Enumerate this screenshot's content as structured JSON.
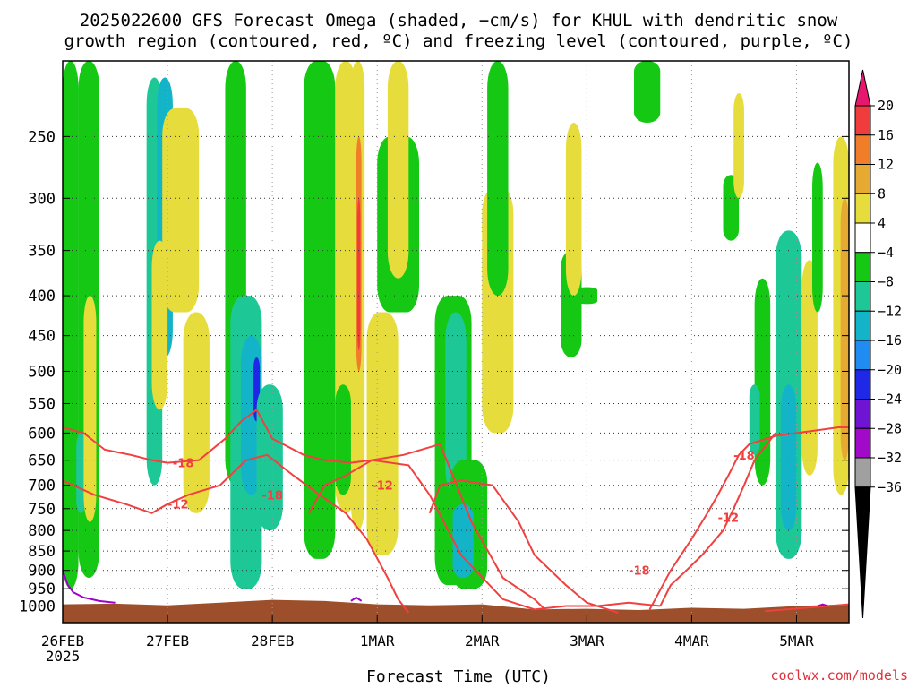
{
  "title": {
    "line1": "2025022600 GFS Forecast Omega (shaded, −cm/s) for KHUL with dendritic snow",
    "line2": "growth region (contoured, red, ºC) and freezing level (contoured, purple, ºC)"
  },
  "credit": "coolwx.com/models",
  "chart_data": {
    "type": "heatmap",
    "xlabel": "Forecast Time (UTC)",
    "x_ticks": [
      "26FEB",
      "27FEB",
      "28FEB",
      "1MAR",
      "2MAR",
      "3MAR",
      "4MAR",
      "5MAR"
    ],
    "x_year": "2025",
    "y_ticks": [
      250,
      300,
      350,
      400,
      450,
      500,
      550,
      600,
      650,
      700,
      750,
      800,
      850,
      900,
      950,
      1000
    ],
    "ylim_hpa": [
      1050,
      200
    ],
    "xlim_days": [
      0,
      7.5
    ],
    "grid": true,
    "colorbar": {
      "labels": [
        "20",
        "16",
        "12",
        "8",
        "4",
        "−4",
        "−8",
        "−12",
        "−16",
        "−20",
        "−24",
        "−28",
        "−32",
        "−36"
      ],
      "colors": [
        "#e8176e",
        "#f03c3c",
        "#f07d28",
        "#e6aa32",
        "#e6dc3c",
        "#ffffff",
        "#14c814",
        "#1ec896",
        "#14b4c8",
        "#1e8cf0",
        "#1e28e6",
        "#6e14d2",
        "#a00ac8",
        "#a0a0a0",
        "#000000"
      ]
    },
    "shading": [
      {
        "t0": 0.0,
        "t1": 0.15,
        "p0": 200,
        "p1": 950,
        "omega": -6
      },
      {
        "t0": 0.15,
        "t1": 0.35,
        "p0": 200,
        "p1": 920,
        "omega": -7
      },
      {
        "t0": 0.13,
        "t1": 0.22,
        "p0": 600,
        "p1": 760,
        "omega": -10
      },
      {
        "t0": 0.2,
        "t1": 0.32,
        "p0": 400,
        "p1": 780,
        "omega": 5
      },
      {
        "t0": 0.8,
        "t1": 0.95,
        "p0": 210,
        "p1": 700,
        "omega": -8
      },
      {
        "t0": 0.9,
        "t1": 1.05,
        "p0": 210,
        "p1": 480,
        "omega": -12
      },
      {
        "t0": 0.95,
        "t1": 1.3,
        "p0": 230,
        "p1": 420,
        "omega": 7
      },
      {
        "t0": 0.85,
        "t1": 1.0,
        "p0": 340,
        "p1": 560,
        "omega": 6
      },
      {
        "t0": 1.15,
        "t1": 1.4,
        "p0": 420,
        "p1": 760,
        "omega": 5
      },
      {
        "t0": 1.55,
        "t1": 1.75,
        "p0": 200,
        "p1": 700,
        "omega": -6
      },
      {
        "t0": 1.6,
        "t1": 1.9,
        "p0": 400,
        "p1": 950,
        "omega": -8
      },
      {
        "t0": 1.7,
        "t1": 1.9,
        "p0": 450,
        "p1": 720,
        "omega": -13
      },
      {
        "t0": 1.82,
        "t1": 1.88,
        "p0": 480,
        "p1": 580,
        "omega": -22
      },
      {
        "t0": 1.85,
        "t1": 2.1,
        "p0": 520,
        "p1": 800,
        "omega": -8
      },
      {
        "t0": 2.3,
        "t1": 2.6,
        "p0": 200,
        "p1": 870,
        "omega": -6
      },
      {
        "t0": 2.6,
        "t1": 2.8,
        "p0": 200,
        "p1": 760,
        "omega": 6
      },
      {
        "t0": 2.75,
        "t1": 2.88,
        "p0": 200,
        "p1": 800,
        "omega": 6
      },
      {
        "t0": 2.8,
        "t1": 2.85,
        "p0": 250,
        "p1": 500,
        "omega": 12
      },
      {
        "t0": 2.81,
        "t1": 2.84,
        "p0": 300,
        "p1": 470,
        "omega": 17
      },
      {
        "t0": 2.6,
        "t1": 2.75,
        "p0": 520,
        "p1": 720,
        "omega": -7
      },
      {
        "t0": 2.9,
        "t1": 3.2,
        "p0": 420,
        "p1": 860,
        "omega": 5
      },
      {
        "t0": 3.0,
        "t1": 3.4,
        "p0": 250,
        "p1": 420,
        "omega": -6
      },
      {
        "t0": 3.55,
        "t1": 3.9,
        "p0": 400,
        "p1": 940,
        "omega": -6
      },
      {
        "t0": 3.65,
        "t1": 3.85,
        "p0": 420,
        "p1": 720,
        "omega": -10
      },
      {
        "t0": 3.7,
        "t1": 4.05,
        "p0": 650,
        "p1": 950,
        "omega": -7
      },
      {
        "t0": 3.72,
        "t1": 3.92,
        "p0": 740,
        "p1": 920,
        "omega": -12
      },
      {
        "t0": 4.0,
        "t1": 4.3,
        "p0": 290,
        "p1": 600,
        "omega": 5
      },
      {
        "t0": 4.05,
        "t1": 4.25,
        "p0": 200,
        "p1": 400,
        "omega": -5
      },
      {
        "t0": 3.1,
        "t1": 3.3,
        "p0": 200,
        "p1": 380,
        "omega": 5
      },
      {
        "t0": 4.75,
        "t1": 4.95,
        "p0": 350,
        "p1": 480,
        "omega": -6
      },
      {
        "t0": 4.9,
        "t1": 5.1,
        "p0": 390,
        "p1": 410,
        "omega": -6
      },
      {
        "t0": 4.8,
        "t1": 4.95,
        "p0": 240,
        "p1": 400,
        "omega": 5
      },
      {
        "t0": 5.45,
        "t1": 5.7,
        "p0": 200,
        "p1": 240,
        "omega": -6
      },
      {
        "t0": 6.3,
        "t1": 6.45,
        "p0": 280,
        "p1": 340,
        "omega": -5
      },
      {
        "t0": 6.4,
        "t1": 6.5,
        "p0": 220,
        "p1": 300,
        "omega": 5
      },
      {
        "t0": 6.6,
        "t1": 6.75,
        "p0": 380,
        "p1": 700,
        "omega": -6
      },
      {
        "t0": 6.55,
        "t1": 6.65,
        "p0": 520,
        "p1": 640,
        "omega": -10
      },
      {
        "t0": 6.8,
        "t1": 7.05,
        "p0": 330,
        "p1": 870,
        "omega": -8
      },
      {
        "t0": 6.85,
        "t1": 7.0,
        "p0": 520,
        "p1": 800,
        "omega": -12
      },
      {
        "t0": 7.05,
        "t1": 7.2,
        "p0": 360,
        "p1": 680,
        "omega": 5
      },
      {
        "t0": 7.15,
        "t1": 7.25,
        "p0": 270,
        "p1": 420,
        "omega": -6
      },
      {
        "t0": 7.35,
        "t1": 7.5,
        "p0": 250,
        "p1": 720,
        "omega": 6
      },
      {
        "t0": 7.42,
        "t1": 7.5,
        "p0": 300,
        "p1": 650,
        "omega": 10
      }
    ],
    "contours_dgz": [
      {
        "label": "-18",
        "label_t": 1.15,
        "label_p": 655,
        "t": [
          0.0,
          0.2,
          0.4,
          0.65,
          0.85,
          1.0,
          1.3,
          1.55,
          1.7,
          1.85,
          2.0,
          2.3,
          2.5,
          2.75,
          2.95,
          3.25,
          3.6,
          3.9,
          4.2,
          4.5,
          4.6
        ],
        "p": [
          590,
          600,
          630,
          640,
          650,
          655,
          650,
          610,
          580,
          560,
          610,
          640,
          650,
          655,
          650,
          640,
          620,
          780,
          920,
          980,
          1010
        ]
      },
      {
        "label": "-12",
        "label_t": 1.1,
        "label_p": 740,
        "t": [
          0.0,
          0.3,
          0.6,
          0.85,
          1.0,
          1.2,
          1.5,
          1.75,
          1.95,
          2.2,
          2.45,
          2.7,
          2.9,
          3.1,
          3.2,
          3.3
        ],
        "p": [
          690,
          720,
          740,
          760,
          740,
          720,
          700,
          650,
          640,
          680,
          720,
          760,
          820,
          920,
          980,
          1020
        ]
      },
      {
        "label": "-18",
        "label_t": 2.0,
        "label_p": 720,
        "t": [
          2.35,
          2.5,
          2.7,
          2.95,
          3.3,
          3.5,
          3.8,
          4.2,
          4.5,
          4.8,
          5.1,
          5.4,
          5.7
        ],
        "p": [
          760,
          700,
          680,
          650,
          660,
          720,
          860,
          980,
          1010,
          1000,
          1000,
          990,
          1000
        ]
      },
      {
        "label": "-12",
        "label_t": 3.05,
        "label_p": 700,
        "t": [
          3.5,
          3.6,
          3.8,
          4.1,
          4.35,
          4.5,
          4.8,
          5.0,
          5.3
        ],
        "p": [
          760,
          700,
          690,
          700,
          780,
          860,
          940,
          990,
          1020
        ]
      },
      {
        "label": "-18",
        "label_t": 5.5,
        "label_p": 900,
        "t": [
          6.7,
          6.9,
          7.1,
          7.3,
          7.5
        ],
        "p": [
          1015,
          1010,
          1005,
          1000,
          995
        ]
      },
      {
        "label": "-18",
        "label_t": 6.5,
        "label_p": 640,
        "t": [
          5.6,
          5.8,
          6.0,
          6.15,
          6.25,
          6.35,
          6.45,
          6.55,
          6.8,
          7.0,
          7.2,
          7.4,
          7.5
        ],
        "p": [
          1010,
          900,
          820,
          760,
          720,
          680,
          640,
          620,
          605,
          600,
          595,
          590,
          590
        ]
      },
      {
        "label": "-12",
        "label_t": 6.35,
        "label_p": 770,
        "t": [
          6.8,
          6.6,
          6.5,
          6.4,
          6.3,
          6.1,
          5.95,
          5.8,
          5.7
        ],
        "p": [
          600,
          650,
          700,
          750,
          800,
          860,
          900,
          940,
          1000
        ]
      }
    ],
    "contours_freezing": [
      {
        "t": [
          0.0,
          0.05,
          0.1,
          0.2,
          0.35,
          0.5
        ],
        "p": [
          900,
          940,
          960,
          975,
          985,
          990
        ]
      },
      {
        "t": [
          2.75,
          2.8,
          2.85
        ],
        "p": [
          985,
          975,
          985
        ]
      },
      {
        "t": [
          7.2,
          7.25,
          7.3
        ],
        "p": [
          1000,
          995,
          1000
        ]
      }
    ],
    "terrain": {
      "t": [
        0.0,
        0.5,
        1.0,
        1.5,
        2.0,
        2.5,
        3.0,
        3.5,
        4.0,
        4.5,
        5.0,
        5.5,
        6.0,
        6.5,
        7.0,
        7.5
      ],
      "p": [
        995,
        993,
        998,
        990,
        982,
        985,
        995,
        998,
        995,
        1010,
        1008,
        1012,
        1005,
        1008,
        1000,
        995
      ]
    }
  }
}
